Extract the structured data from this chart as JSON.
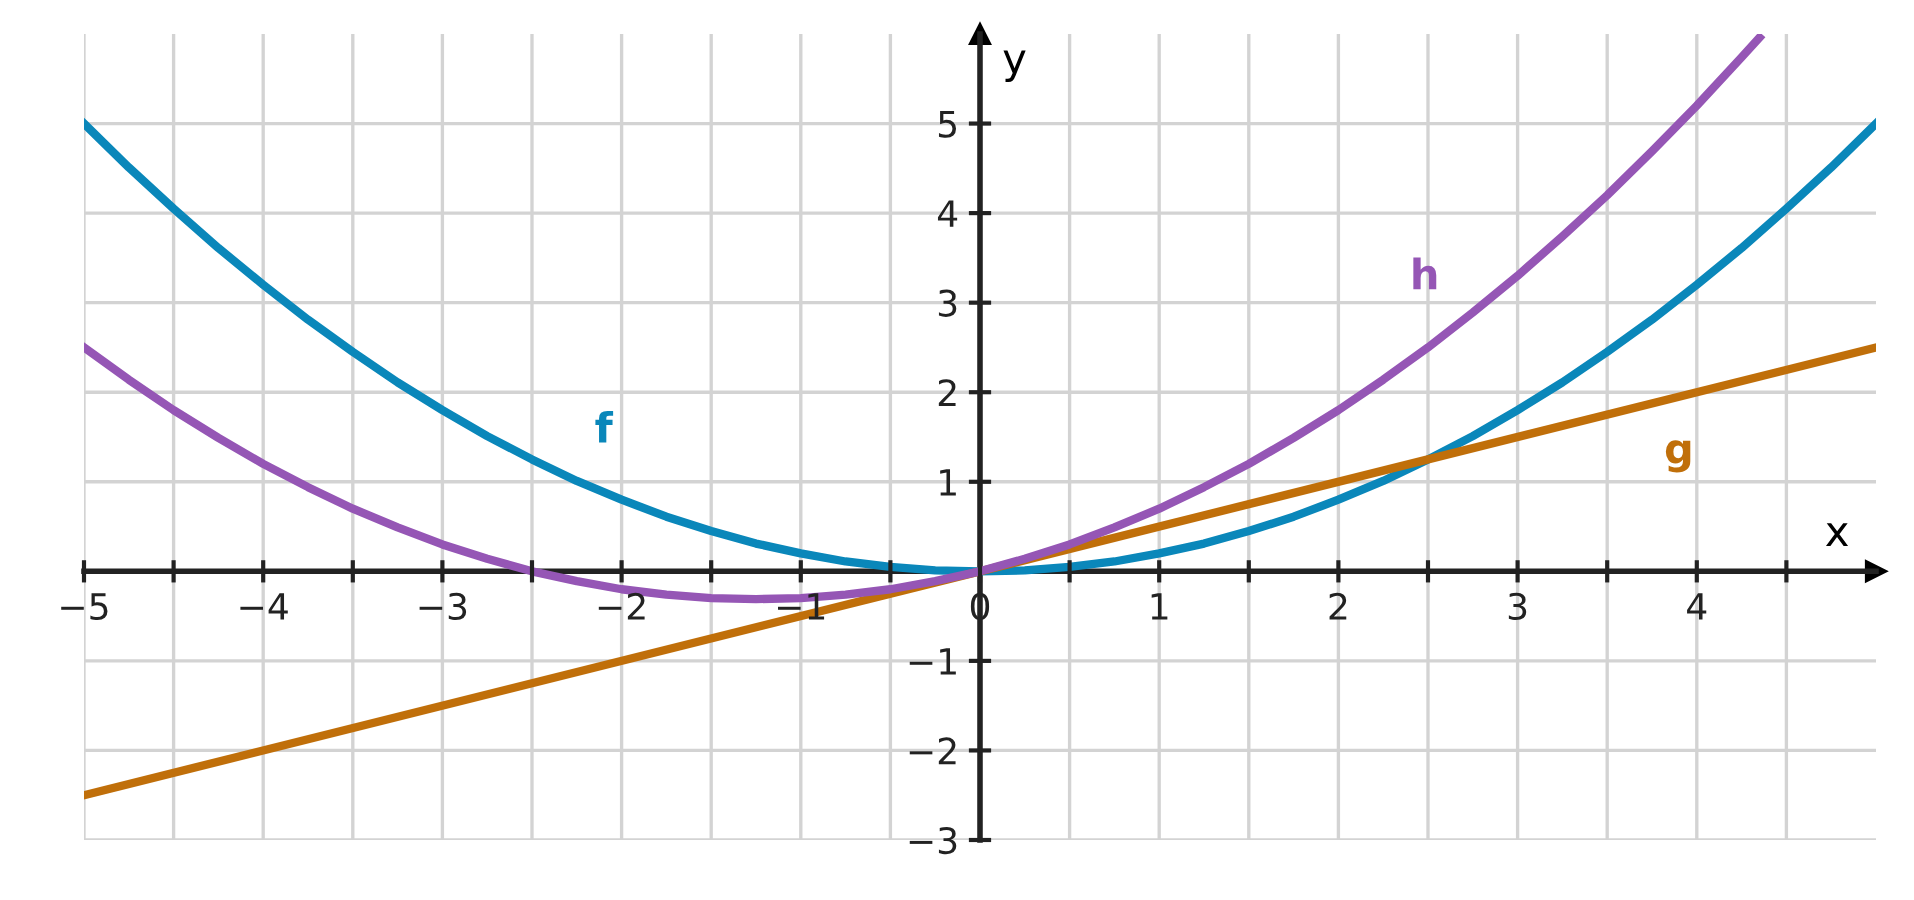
{
  "chart_data": {
    "type": "line",
    "xlabel": "x",
    "ylabel": "y",
    "xlim": [
      -5,
      5
    ],
    "ylim": [
      -3,
      6
    ],
    "xticks": [
      -5,
      {
        "value": -4.5,
        "label": null
      },
      -4,
      {
        "value": -3.5,
        "label": null
      },
      -3,
      {
        "value": -2.5,
        "label": null
      },
      -2,
      {
        "value": -1.5,
        "label": null
      },
      -1,
      {
        "value": -0.5,
        "label": null
      },
      0,
      {
        "value": 0.5,
        "label": null
      },
      1,
      {
        "value": 1.5,
        "label": null
      },
      2,
      {
        "value": 2.5,
        "label": null
      },
      3,
      {
        "value": 3.5,
        "label": null
      },
      4,
      {
        "value": 4.5,
        "label": null
      }
    ],
    "yticks": [
      -3,
      -2,
      -1,
      1,
      2,
      3,
      4,
      5
    ],
    "grid": true,
    "legend": false,
    "marker": "none",
    "line_style": "solid",
    "series": [
      {
        "name": "f",
        "color": "#0a87ba",
        "x": [
          -5,
          -4.75,
          -4.5,
          -4.25,
          -4,
          -3.75,
          -3.5,
          -3.25,
          -3,
          -2.75,
          -2.5,
          -2.25,
          -2,
          -1.75,
          -1.5,
          -1.25,
          -1,
          -0.75,
          -0.5,
          -0.25,
          0,
          0.25,
          0.5,
          0.75,
          1,
          1.25,
          1.5,
          1.75,
          2,
          2.25,
          2.5,
          2.75,
          3,
          3.25,
          3.5,
          3.75,
          4,
          4.25,
          4.5,
          4.75,
          5
        ],
        "values": [
          5,
          4.51,
          4.05,
          3.61,
          3.2,
          2.81,
          2.45,
          2.11,
          1.8,
          1.51,
          1.25,
          1.01,
          0.8,
          0.61,
          0.45,
          0.31,
          0.2,
          0.11,
          0.05,
          0.01,
          0,
          0.01,
          0.05,
          0.11,
          0.2,
          0.31,
          0.45,
          0.61,
          0.8,
          1.01,
          1.25,
          1.51,
          1.8,
          2.11,
          2.45,
          2.81,
          3.2,
          3.61,
          4.05,
          4.51,
          5
        ]
      },
      {
        "name": "g",
        "color": "#c06f0a",
        "x": [
          -5,
          5
        ],
        "values": [
          -2.5,
          2.5
        ]
      },
      {
        "name": "h",
        "color": "#9556b5",
        "x": [
          -5,
          -4.75,
          -4.5,
          -4.25,
          -4,
          -3.75,
          -3.5,
          -3.25,
          -3,
          -2.75,
          -2.5,
          -2.25,
          -2,
          -1.75,
          -1.5,
          -1.25,
          -1,
          -0.75,
          -0.5,
          -0.25,
          0,
          0.25,
          0.5,
          0.75,
          1,
          1.25,
          1.5,
          1.75,
          2,
          2.25,
          2.5,
          2.75,
          3,
          3.25,
          3.5,
          3.75,
          4,
          4.25,
          4.35
        ],
        "values": [
          2.5,
          2.14,
          1.8,
          1.49,
          1.2,
          0.94,
          0.7,
          0.49,
          0.3,
          0.14,
          0,
          -0.11,
          -0.2,
          -0.26,
          -0.3,
          -0.31,
          -0.3,
          -0.26,
          -0.2,
          -0.11,
          0,
          0.14,
          0.3,
          0.49,
          0.7,
          0.94,
          1.2,
          1.49,
          1.8,
          2.14,
          2.5,
          2.89,
          3.3,
          3.74,
          4.2,
          4.69,
          5.2,
          5.74,
          5.96
        ]
      }
    ]
  }
}
